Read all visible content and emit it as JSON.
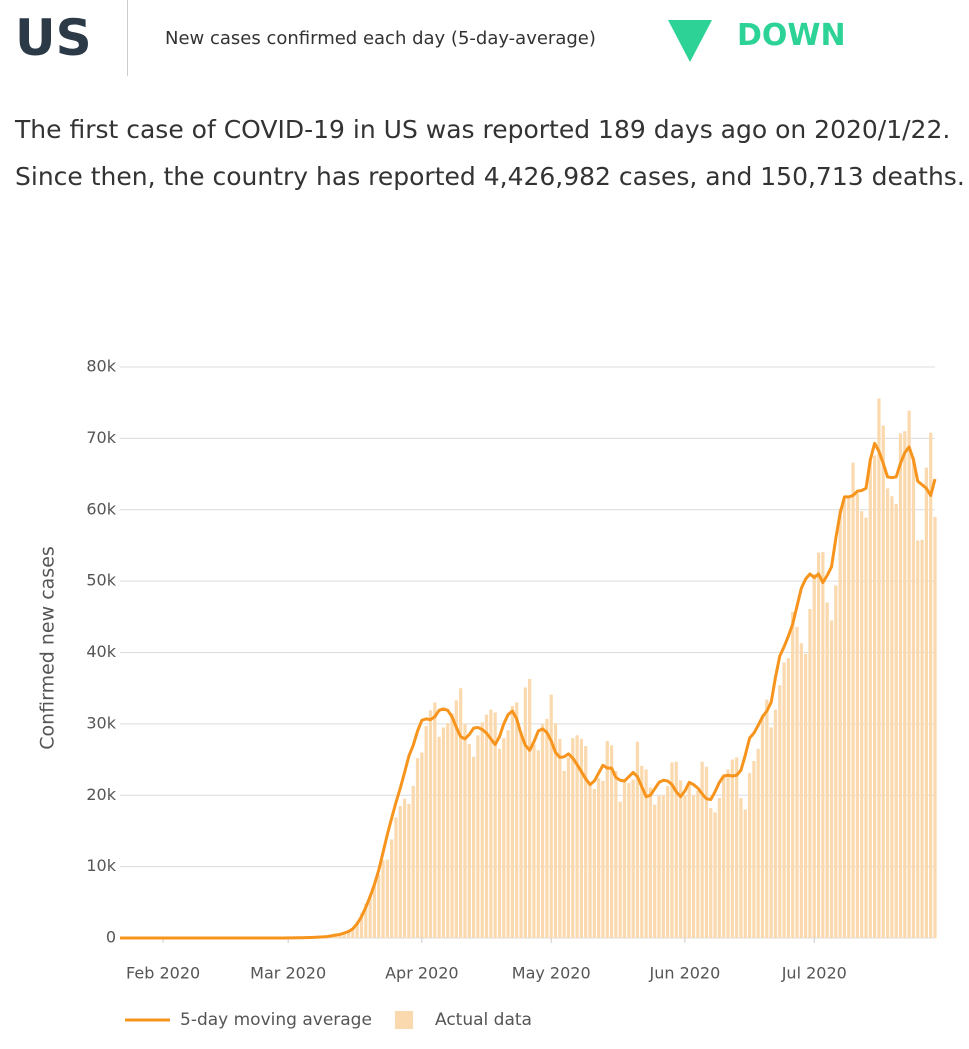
{
  "header": {
    "title": "US",
    "subtitle": "New cases confirmed each day (5-day-average)",
    "trend": "DOWN"
  },
  "summary": "The first case of COVID-19 in US was reported 189 days ago on 2020/1/22. Since then, the country has reported 4,426,982 cases, and 150,713 deaths.",
  "chart_data": {
    "type": "bar",
    "y_label": "Confirmed new cases",
    "categories": [
      null,
      null,
      null,
      null,
      null,
      null,
      null,
      null,
      null,
      null,
      null,
      null,
      null,
      null,
      null,
      null,
      null,
      null,
      null,
      null,
      null,
      null,
      null,
      null,
      null,
      null,
      null,
      null,
      null,
      null,
      null,
      null,
      null,
      null,
      null,
      null,
      null,
      null,
      null,
      null,
      null,
      null,
      null,
      null,
      null,
      null,
      null,
      null,
      null,
      null,
      null,
      null,
      null,
      null,
      null,
      null,
      null,
      null,
      null,
      null,
      null,
      null,
      null,
      null,
      null,
      null,
      null,
      null,
      null,
      null,
      null,
      null,
      null,
      null,
      null,
      null,
      null,
      null,
      null,
      null,
      null,
      null,
      null,
      null,
      null,
      null,
      null,
      null,
      null,
      null,
      null,
      null,
      null,
      null,
      null,
      null,
      null,
      null,
      null,
      null,
      null,
      null,
      null,
      null,
      null,
      null,
      null,
      null,
      null,
      null,
      null,
      null,
      null,
      null,
      null,
      null,
      null,
      null,
      null,
      null,
      null,
      null,
      null,
      null,
      null,
      null,
      null,
      null,
      null,
      null,
      null,
      null,
      null,
      null,
      null,
      null,
      null,
      null,
      null,
      null,
      null,
      null,
      null,
      null,
      null,
      null,
      null,
      null,
      null,
      null,
      null,
      null,
      null,
      null,
      null,
      null,
      null,
      null,
      null,
      null,
      null,
      null,
      null,
      null,
      null,
      null,
      null,
      null,
      null,
      null,
      null,
      null,
      null,
      null,
      null,
      null,
      null,
      null,
      null,
      null,
      null,
      null,
      null,
      null,
      null,
      null,
      null,
      null,
      null,
      null
    ],
    "xticks": [
      {
        "value": 10,
        "label": "Feb 2020"
      },
      {
        "value": 39,
        "label": "Mar 2020"
      },
      {
        "value": 70,
        "label": "Apr 2020"
      },
      {
        "value": 100,
        "label": "May 2020"
      },
      {
        "value": 131,
        "label": "Jun 2020"
      },
      {
        "value": 161,
        "label": "Jul 2020"
      }
    ],
    "ylim": [
      0,
      80000
    ],
    "yticks": [
      0,
      {
        "value": 10000,
        "label": "10k"
      },
      {
        "value": 20000,
        "label": "20k"
      },
      {
        "value": 30000,
        "label": "30k"
      },
      {
        "value": 40000,
        "label": "40k"
      },
      {
        "value": 50000,
        "label": "50k"
      },
      {
        "value": 60000,
        "label": "60k"
      },
      {
        "value": 70000,
        "label": "70k"
      },
      {
        "value": 80000,
        "label": "80k"
      }
    ],
    "grid": true,
    "legend": "bottom",
    "series": [
      {
        "name": "5-day moving average",
        "type": "line",
        "color": "#f7941d",
        "values": [
          0,
          0,
          1,
          1,
          1,
          1,
          1,
          1,
          0,
          1,
          1,
          1,
          1,
          1,
          1,
          1,
          1,
          0,
          0,
          0,
          0,
          0,
          0,
          1,
          1,
          1,
          1,
          3,
          3,
          3,
          3,
          3,
          6,
          4,
          5,
          5,
          5,
          3,
          4,
          10,
          20,
          30,
          40,
          50,
          70,
          90,
          120,
          150,
          200,
          300,
          400,
          500,
          700,
          900,
          1300,
          2000,
          3000,
          4300,
          5800,
          7500,
          9500,
          12000,
          14500,
          16800,
          19000,
          21000,
          23200,
          25500,
          27000,
          29000,
          30500,
          30700,
          30600,
          31000,
          31900,
          32100,
          31900,
          31000,
          29500,
          28200,
          27900,
          28500,
          29400,
          29500,
          29200,
          28700,
          27900,
          27100,
          28200,
          30000,
          31300,
          31800,
          30700,
          28600,
          27000,
          26300,
          27500,
          29000,
          29300,
          28800,
          27600,
          26000,
          25300,
          25400,
          25800,
          25200,
          24300,
          23300,
          22300,
          21500,
          22000,
          23100,
          24200,
          23800,
          23800,
          22500,
          22100,
          22000,
          22600,
          23200,
          22600,
          21200,
          19800,
          20000,
          20900,
          21800,
          22100,
          22000,
          21500,
          20500,
          19800,
          20600,
          21800,
          21500,
          21000,
          20200,
          19500,
          19400,
          20500,
          21800,
          22700,
          22800,
          22700,
          22800,
          23500,
          25600,
          28000,
          28700,
          29800,
          31000,
          31800,
          33000,
          36500,
          39500,
          40800,
          42300,
          44000,
          46500,
          49000,
          50300,
          51000,
          50500,
          51000,
          49800,
          50800,
          52000,
          56000,
          59500,
          61800,
          61800,
          62000,
          62600,
          62700,
          63000,
          67000,
          69300,
          68200,
          66500,
          64600,
          64500,
          64600,
          66500,
          68000,
          68800,
          67000,
          64000,
          63500,
          63000,
          62000,
          64300
        ]
      },
      {
        "name": "Actual data",
        "type": "bar",
        "color": "#fbd9ae",
        "values": [
          1,
          0,
          1,
          0,
          3,
          0,
          0,
          0,
          1,
          1,
          1,
          2,
          0,
          3,
          0,
          0,
          1,
          0,
          0,
          0,
          0,
          1,
          0,
          2,
          0,
          1,
          0,
          0,
          12,
          0,
          1,
          0,
          0,
          18,
          0,
          4,
          3,
          3,
          5,
          10,
          20,
          30,
          40,
          60,
          70,
          100,
          110,
          170,
          290,
          330,
          400,
          520,
          800,
          1000,
          1300,
          2300,
          3500,
          4800,
          6000,
          7400,
          8900,
          10900,
          11000,
          13800,
          16900,
          18500,
          19500,
          18800,
          21300,
          25200,
          26000,
          29700,
          31900,
          33000,
          28200,
          29500,
          30100,
          31500,
          33300,
          35000,
          30000,
          27200,
          25400,
          28400,
          30200,
          31300,
          32000,
          31600,
          26500,
          28000,
          29100,
          32500,
          33000,
          28900,
          35100,
          36300,
          27100,
          26300,
          30000,
          30700,
          34100,
          30100,
          27900,
          23400,
          25300,
          28000,
          28400,
          27900,
          26900,
          21500,
          20900,
          22400,
          22000,
          27600,
          27000,
          23400,
          19100,
          21800,
          21700,
          22200,
          27500,
          24100,
          23600,
          21100,
          18700,
          19900,
          20000,
          21300,
          24600,
          24700,
          22100,
          20000,
          21500,
          20000,
          20600,
          24700,
          24000,
          18200,
          17600,
          19600,
          22800,
          23600,
          25000,
          25300,
          19600,
          18000,
          23100,
          24800,
          26500,
          31300,
          33400,
          29500,
          32000,
          35400,
          38600,
          39200,
          45700,
          43600,
          41300,
          39800,
          46100,
          51000,
          54000,
          54100,
          47000,
          44500,
          49400,
          60200,
          61400,
          61900,
          66600,
          62300,
          59800,
          58900,
          66900,
          67600,
          75600,
          71800,
          63000,
          61900,
          60800,
          70700,
          71000,
          73900,
          67400,
          55700,
          55800,
          65900,
          70800,
          59000
        ]
      }
    ]
  }
}
